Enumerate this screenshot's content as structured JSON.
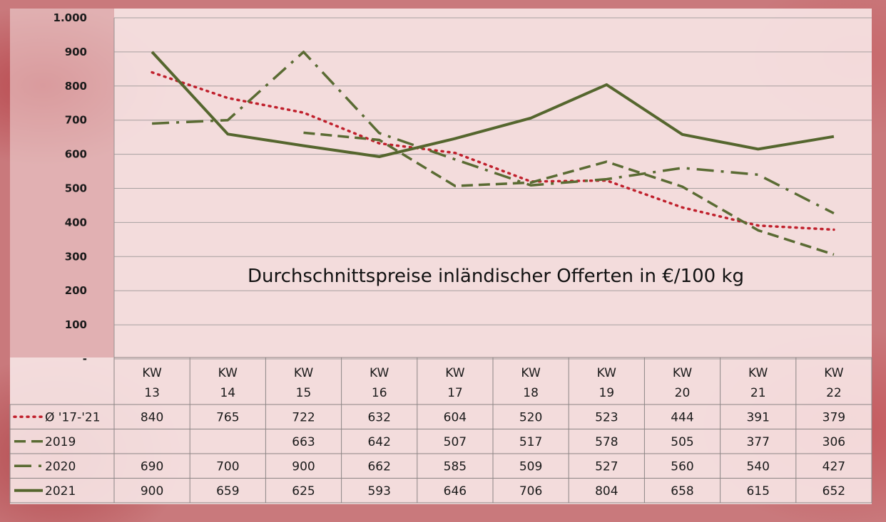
{
  "chart_data": {
    "type": "line",
    "title": "Durchschnittspreise inländischer Offerten in €/100 kg",
    "categories": [
      [
        "KW",
        "13"
      ],
      [
        "KW",
        "14"
      ],
      [
        "KW",
        "15"
      ],
      [
        "KW",
        "16"
      ],
      [
        "KW",
        "17"
      ],
      [
        "KW",
        "18"
      ],
      [
        "KW",
        "19"
      ],
      [
        "KW",
        "20"
      ],
      [
        "KW",
        "21"
      ],
      [
        "KW",
        "22"
      ]
    ],
    "ylim": [
      0,
      1000
    ],
    "yticks": [
      {
        "value": 0,
        "label": "-"
      },
      {
        "value": 100,
        "label": "100"
      },
      {
        "value": 200,
        "label": "200"
      },
      {
        "value": 300,
        "label": "300"
      },
      {
        "value": 400,
        "label": "400"
      },
      {
        "value": 500,
        "label": "500"
      },
      {
        "value": 600,
        "label": "600"
      },
      {
        "value": 700,
        "label": "700"
      },
      {
        "value": 800,
        "label": "800"
      },
      {
        "value": 900,
        "label": "900"
      },
      {
        "value": 1000,
        "label": "1.000"
      }
    ],
    "grid": true,
    "legend": "data-table",
    "series": [
      {
        "name": "Ø '17-'21",
        "style": "dotted",
        "color": "#c0202c",
        "values": [
          840,
          765,
          722,
          632,
          604,
          520,
          523,
          444,
          391,
          379
        ]
      },
      {
        "name": "2019",
        "style": "dashed",
        "color": "#5a6b33",
        "values": [
          null,
          null,
          663,
          642,
          507,
          517,
          578,
          505,
          377,
          306
        ]
      },
      {
        "name": "2020",
        "style": "dashdot",
        "color": "#5a6b33",
        "values": [
          690,
          700,
          900,
          662,
          585,
          509,
          527,
          560,
          540,
          427
        ]
      },
      {
        "name": "2021",
        "style": "solid",
        "color": "#55662e",
        "values": [
          900,
          659,
          625,
          593,
          646,
          706,
          804,
          658,
          615,
          652
        ]
      }
    ]
  }
}
